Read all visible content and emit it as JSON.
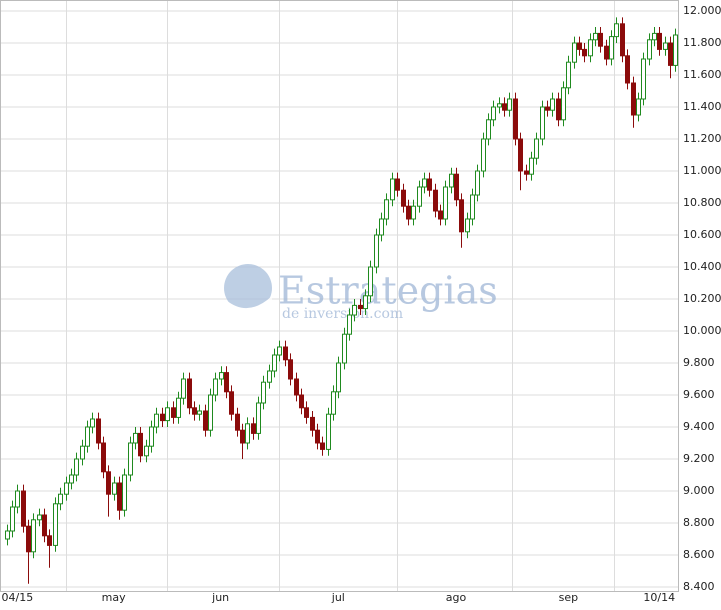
{
  "chart_data": {
    "type": "candlestick",
    "up_color": "#1f8a1f",
    "down_color": "#8b0b0b",
    "grid": true,
    "watermark": {
      "title": "Estrategias",
      "subtitle": "de inversión.com",
      "color": "#9fb6d6"
    },
    "ylim": [
      8.4,
      12.0
    ],
    "yticks": [
      {
        "value": 8.4,
        "label": "8.400"
      },
      {
        "value": 8.6,
        "label": "8.600"
      },
      {
        "value": 8.8,
        "label": "8.800"
      },
      {
        "value": 9.0,
        "label": "9.000"
      },
      {
        "value": 9.2,
        "label": "9.200"
      },
      {
        "value": 9.4,
        "label": "9.400"
      },
      {
        "value": 9.6,
        "label": "9.600"
      },
      {
        "value": 9.8,
        "label": "9.800"
      },
      {
        "value": 10.0,
        "label": "10.000"
      },
      {
        "value": 10.2,
        "label": "10.200"
      },
      {
        "value": 10.4,
        "label": "10.400"
      },
      {
        "value": 10.6,
        "label": "10.600"
      },
      {
        "value": 10.8,
        "label": "10.800"
      },
      {
        "value": 11.0,
        "label": "11.000"
      },
      {
        "value": 11.2,
        "label": "11.200"
      },
      {
        "value": 11.4,
        "label": "11.400"
      },
      {
        "value": 11.6,
        "label": "11.600"
      },
      {
        "value": 11.8,
        "label": "11.800"
      },
      {
        "value": 12.0,
        "label": "12.000"
      }
    ],
    "xticks": [
      {
        "value": 2,
        "label": "04/15"
      },
      {
        "value": 20,
        "label": "may"
      },
      {
        "value": 40,
        "label": "jun"
      },
      {
        "value": 62,
        "label": "jul"
      },
      {
        "value": 84,
        "label": "ago"
      },
      {
        "value": 105,
        "label": "sep"
      },
      {
        "value": 122,
        "label": "10/14"
      }
    ],
    "open": [
      8.7,
      8.75,
      8.9,
      9.0,
      8.78,
      8.62,
      8.82,
      8.85,
      8.72,
      8.66,
      8.92,
      8.98,
      9.05,
      9.1,
      9.2,
      9.28,
      9.4,
      9.45,
      9.3,
      9.12,
      8.98,
      9.05,
      8.88,
      9.1,
      9.3,
      9.36,
      9.22,
      9.28,
      9.4,
      9.48,
      9.44,
      9.52,
      9.46,
      9.58,
      9.7,
      9.52,
      9.48,
      9.5,
      9.38,
      9.6,
      9.7,
      9.74,
      9.62,
      9.48,
      9.38,
      9.3,
      9.42,
      9.36,
      9.55,
      9.68,
      9.75,
      9.85,
      9.9,
      9.82,
      9.7,
      9.6,
      9.52,
      9.46,
      9.38,
      9.3,
      9.26,
      9.48,
      9.62,
      9.8,
      9.98,
      10.1,
      10.16,
      10.14,
      10.22,
      10.4,
      10.6,
      10.7,
      10.82,
      10.95,
      10.88,
      10.78,
      10.7,
      10.78,
      10.9,
      10.95,
      10.88,
      10.75,
      10.7,
      10.9,
      10.98,
      10.82,
      10.62,
      10.7,
      10.85,
      11.0,
      11.2,
      11.32,
      11.4,
      11.42,
      11.38,
      11.45,
      11.2,
      11.0,
      10.98,
      11.08,
      11.2,
      11.4,
      11.38,
      11.45,
      11.32,
      11.52,
      11.68,
      11.8,
      11.76,
      11.72,
      11.82,
      11.86,
      11.78,
      11.7,
      11.84,
      11.92,
      11.72,
      11.55,
      11.35,
      11.45,
      11.7,
      11.82,
      11.86,
      11.76,
      11.8,
      11.66
    ],
    "high": [
      8.79,
      8.94,
      9.04,
      9.04,
      8.82,
      8.86,
      8.89,
      8.89,
      8.76,
      8.96,
      9.02,
      9.09,
      9.14,
      9.24,
      9.32,
      9.44,
      9.49,
      9.49,
      9.34,
      9.16,
      9.09,
      9.09,
      9.14,
      9.34,
      9.4,
      9.4,
      9.32,
      9.44,
      9.52,
      9.52,
      9.56,
      9.56,
      9.62,
      9.74,
      9.74,
      9.56,
      9.54,
      9.54,
      9.64,
      9.74,
      9.78,
      9.78,
      9.66,
      9.52,
      9.42,
      9.46,
      9.46,
      9.59,
      9.72,
      9.79,
      9.89,
      9.94,
      9.94,
      9.86,
      9.74,
      9.64,
      9.56,
      9.5,
      9.42,
      9.34,
      9.52,
      9.66,
      9.84,
      10.02,
      10.14,
      10.2,
      10.2,
      10.26,
      10.44,
      10.64,
      10.74,
      10.86,
      10.99,
      10.99,
      10.92,
      10.82,
      10.82,
      10.94,
      10.99,
      10.99,
      10.92,
      10.79,
      10.94,
      11.02,
      11.02,
      10.86,
      10.74,
      10.89,
      11.04,
      11.24,
      11.36,
      11.44,
      11.46,
      11.46,
      11.49,
      11.49,
      11.24,
      11.04,
      11.12,
      11.24,
      11.44,
      11.44,
      11.49,
      11.49,
      11.56,
      11.72,
      11.84,
      11.84,
      11.8,
      11.86,
      11.9,
      11.9,
      11.82,
      11.88,
      11.96,
      11.96,
      11.76,
      11.59,
      11.49,
      11.74,
      11.86,
      11.9,
      11.9,
      11.84,
      11.84,
      11.89
    ],
    "low": [
      8.66,
      8.71,
      8.86,
      8.74,
      8.42,
      8.58,
      8.78,
      8.68,
      8.52,
      8.62,
      8.88,
      8.94,
      9.01,
      9.06,
      9.16,
      9.24,
      9.36,
      9.26,
      9.08,
      8.84,
      8.94,
      8.82,
      8.84,
      9.06,
      9.26,
      9.18,
      9.18,
      9.24,
      9.36,
      9.4,
      9.4,
      9.42,
      9.42,
      9.54,
      9.48,
      9.44,
      9.44,
      9.34,
      9.34,
      9.56,
      9.66,
      9.58,
      9.44,
      9.34,
      9.2,
      9.26,
      9.32,
      9.32,
      9.51,
      9.64,
      9.71,
      9.81,
      9.78,
      9.66,
      9.56,
      9.48,
      9.42,
      9.34,
      9.26,
      9.22,
      9.22,
      9.44,
      9.58,
      9.76,
      9.94,
      10.06,
      10.1,
      10.1,
      10.18,
      10.36,
      10.56,
      10.66,
      10.78,
      10.84,
      10.74,
      10.66,
      10.66,
      10.74,
      10.86,
      10.84,
      10.71,
      10.66,
      10.66,
      10.86,
      10.78,
      10.52,
      10.58,
      10.66,
      10.81,
      10.96,
      11.16,
      11.28,
      11.36,
      11.34,
      11.34,
      11.16,
      10.88,
      10.94,
      10.94,
      11.04,
      11.16,
      11.34,
      11.34,
      11.28,
      11.28,
      11.48,
      11.64,
      11.72,
      11.68,
      11.68,
      11.78,
      11.74,
      11.66,
      11.66,
      11.8,
      11.68,
      11.51,
      11.27,
      11.31,
      11.41,
      11.66,
      11.78,
      11.72,
      11.72,
      11.58,
      11.62
    ],
    "close": [
      8.75,
      8.9,
      9.0,
      8.78,
      8.62,
      8.82,
      8.85,
      8.72,
      8.66,
      8.92,
      8.98,
      9.05,
      9.1,
      9.2,
      9.28,
      9.4,
      9.45,
      9.3,
      9.12,
      8.98,
      9.05,
      8.88,
      9.1,
      9.3,
      9.36,
      9.22,
      9.28,
      9.4,
      9.48,
      9.44,
      9.52,
      9.46,
      9.58,
      9.7,
      9.52,
      9.48,
      9.5,
      9.38,
      9.6,
      9.7,
      9.74,
      9.62,
      9.48,
      9.38,
      9.3,
      9.42,
      9.36,
      9.55,
      9.68,
      9.75,
      9.85,
      9.9,
      9.82,
      9.7,
      9.6,
      9.52,
      9.46,
      9.38,
      9.3,
      9.26,
      9.48,
      9.62,
      9.8,
      9.98,
      10.1,
      10.16,
      10.14,
      10.22,
      10.4,
      10.6,
      10.7,
      10.82,
      10.95,
      10.88,
      10.78,
      10.7,
      10.78,
      10.9,
      10.95,
      10.88,
      10.75,
      10.7,
      10.9,
      10.98,
      10.82,
      10.62,
      10.7,
      10.85,
      11.0,
      11.2,
      11.32,
      11.4,
      11.42,
      11.38,
      11.45,
      11.2,
      11.0,
      10.98,
      11.08,
      11.2,
      11.4,
      11.38,
      11.45,
      11.32,
      11.52,
      11.68,
      11.8,
      11.76,
      11.72,
      11.82,
      11.86,
      11.78,
      11.7,
      11.84,
      11.92,
      11.72,
      11.55,
      11.35,
      11.45,
      11.7,
      11.82,
      11.86,
      11.76,
      11.8,
      11.66,
      11.85
    ]
  }
}
